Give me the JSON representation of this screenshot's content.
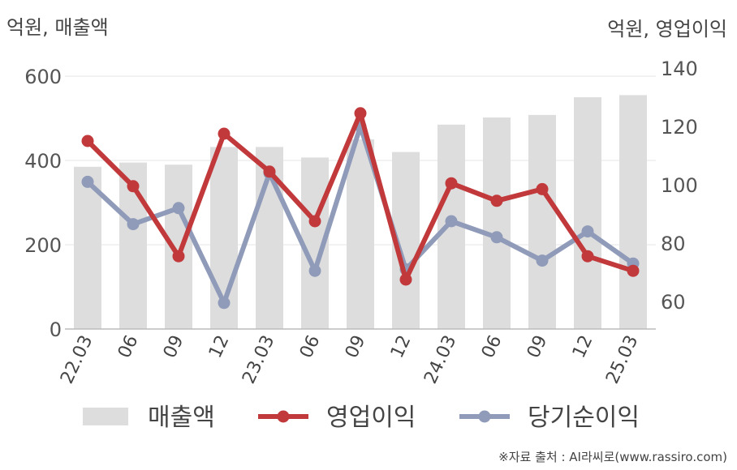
{
  "unit_left": "억원, 매출액",
  "unit_right": "억원, 영업이익",
  "source": "※자료 출처 : AI라씨로(www.rassiro.com)",
  "colors": {
    "bar": "#dddddd",
    "operating": "#c1393b",
    "net": "#8f9bb8",
    "grid": "#e6e6e6",
    "axis": "#bbbbbb"
  },
  "chart_data": {
    "type": "bar+line",
    "categories": [
      "22.03",
      "06",
      "09",
      "12",
      "23.03",
      "06",
      "09",
      "12",
      "24.03",
      "06",
      "09",
      "12",
      "25.03"
    ],
    "y_left": {
      "ticks": [
        0,
        200,
        400,
        600
      ],
      "range": [
        0,
        600
      ]
    },
    "y_right": {
      "ticks": [
        60,
        80,
        100,
        120,
        140
      ],
      "range": [
        50,
        140
      ]
    },
    "legend": [
      "매출액",
      "영업이익",
      "당기순이익"
    ],
    "series": [
      {
        "name": "매출액",
        "type": "bar",
        "axis": "left",
        "values": [
          385,
          395,
          390,
          432,
          432,
          407,
          450,
          420,
          485,
          502,
          508,
          550,
          555
        ]
      },
      {
        "name": "영업이익",
        "type": "line",
        "axis": "right",
        "values": [
          115,
          99.5,
          75.5,
          117.5,
          104.5,
          87.5,
          124.5,
          67.5,
          100.5,
          94.5,
          98.5,
          75.5,
          70.5
        ]
      },
      {
        "name": "당기순이익",
        "type": "line",
        "axis": "right",
        "values": [
          101,
          86.5,
          92,
          59.5,
          104,
          70.5,
          120,
          71,
          87.5,
          82,
          74,
          84,
          73
        ]
      }
    ]
  }
}
